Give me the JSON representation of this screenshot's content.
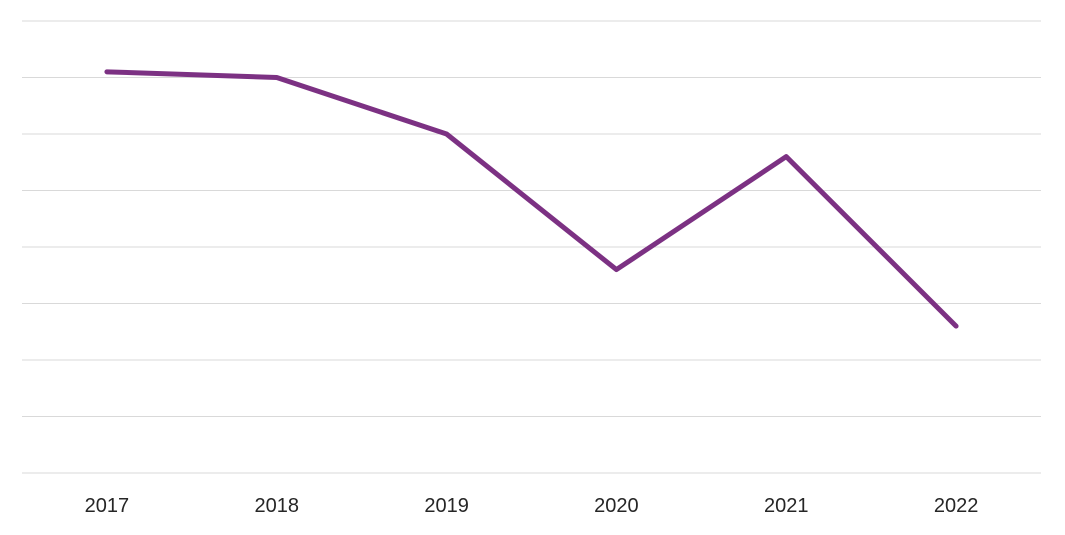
{
  "chart_data": {
    "type": "line",
    "title": "",
    "xlabel": "",
    "ylabel": "",
    "categories": [
      "2017",
      "2018",
      "2019",
      "2020",
      "2021",
      "2022"
    ],
    "values": [
      7.1,
      7.0,
      6.0,
      3.6,
      5.6,
      2.6
    ],
    "ylim": [
      0,
      8
    ],
    "gridline_interval": 1,
    "grid": "horizontal",
    "legend_position": "none",
    "y_tick_labels_visible": false,
    "line_color": "#7C3183",
    "line_width": 5,
    "gridline_color": "#D9D9D9",
    "label_color": "#262626",
    "background_color": "#FFFFFF"
  }
}
